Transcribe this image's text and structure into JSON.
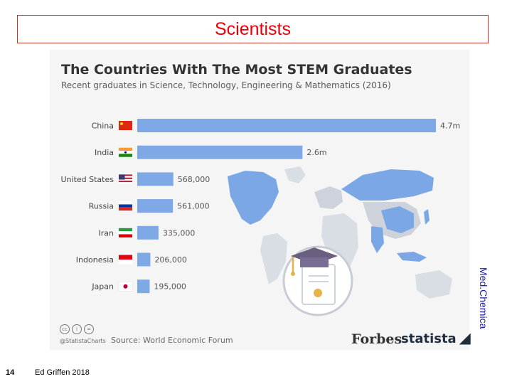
{
  "slide": {
    "title": "Scientists",
    "side_label": "Med.Chemica",
    "page_number": "14",
    "footer": "Ed Griffen 2018"
  },
  "chart_data": {
    "type": "bar",
    "orientation": "horizontal",
    "title": "The Countries With The Most STEM Graduates",
    "subtitle": "Recent graduates in Science, Technology, Engineering & Mathematics (2016)",
    "categories": [
      "China",
      "India",
      "United States",
      "Russia",
      "Iran",
      "Indonesia",
      "Japan"
    ],
    "values": [
      4700000,
      2600000,
      568000,
      561000,
      335000,
      206000,
      195000
    ],
    "data_labels": [
      "4.7m",
      "2.6m",
      "568,000",
      "561,000",
      "335,000",
      "206,000",
      "195,000"
    ],
    "flags": [
      "china-flag",
      "india-flag",
      "usa-flag",
      "russia-flag",
      "iran-flag",
      "indonesia-flag",
      "japan-flag"
    ],
    "bar_color": "#7fa9e6",
    "xlim": [
      0,
      4700000
    ],
    "grid": false,
    "source": "Source: World Economic Forum",
    "handle": "@StatistaCharts",
    "brands": [
      "Forbes",
      "statista"
    ]
  }
}
